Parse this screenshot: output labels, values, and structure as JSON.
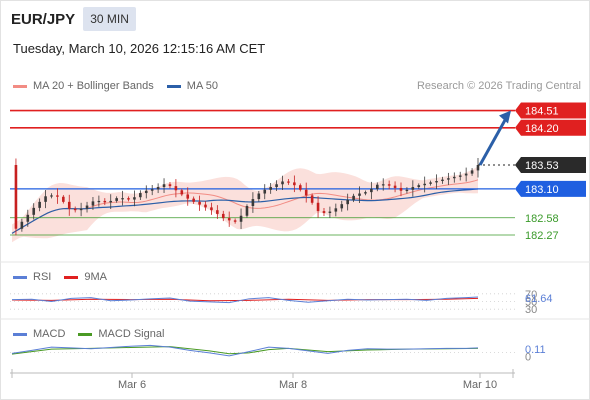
{
  "header": {
    "pair": "EUR/JPY",
    "timeframe": "30 MIN"
  },
  "datetime": "Tuesday, March 10, 2026 12:15:16 AM CET",
  "credit": "Research © 2026 Trading Central",
  "colors": {
    "bollinger": "#f28c84",
    "band_fill": "#fbe0dc",
    "ma50": "#2b5fa8",
    "resistance": "#e02020",
    "support_blue": "#1f5fe0",
    "support_green": "#3a9a2a",
    "candle_up": "#3a3a3a",
    "candle_down": "#c72020",
    "arrow": "#2b5fa8",
    "rsi": "#5b7fd6",
    "rsi_ma": "#e02020",
    "macd": "#5b7fd6",
    "macd_signal": "#4a9a24"
  },
  "chart_data": [
    {
      "type": "line",
      "title": "EUR/JPY",
      "y_range": [
        182.0,
        184.7
      ],
      "ma20_bollinger_label": "MA 20 + Bollinger Bands",
      "ma50_label": "MA 50",
      "x_tick_labels": [
        "Mar 6",
        "Mar 8",
        "Mar 10"
      ],
      "levels": [
        {
          "value": 184.51,
          "label": "184.51",
          "kind": "resistance",
          "style": "tag"
        },
        {
          "value": 184.2,
          "label": "184.20",
          "kind": "resistance",
          "style": "tag"
        },
        {
          "value": 183.53,
          "label": "183.53",
          "kind": "current",
          "style": "dark-tag"
        },
        {
          "value": 183.1,
          "label": "183.10",
          "kind": "support",
          "style": "tag"
        },
        {
          "value": 182.58,
          "label": "182.58",
          "kind": "support",
          "style": "text"
        },
        {
          "value": 182.27,
          "label": "182.27",
          "kind": "support",
          "style": "text"
        }
      ],
      "close_points": [
        [
          0,
          182.3
        ],
        [
          3,
          182.55
        ],
        [
          6,
          182.8
        ],
        [
          9,
          183.0
        ],
        [
          12,
          182.95
        ],
        [
          15,
          182.7
        ],
        [
          18,
          182.75
        ],
        [
          21,
          182.9
        ],
        [
          24,
          182.85
        ],
        [
          27,
          182.95
        ],
        [
          30,
          182.9
        ],
        [
          33,
          183.05
        ],
        [
          36,
          183.1
        ],
        [
          39,
          183.2
        ],
        [
          42,
          183.05
        ],
        [
          45,
          182.9
        ],
        [
          48,
          182.8
        ],
        [
          51,
          182.7
        ],
        [
          54,
          182.55
        ],
        [
          57,
          182.5
        ],
        [
          60,
          182.85
        ],
        [
          63,
          183.05
        ],
        [
          66,
          183.15
        ],
        [
          69,
          183.25
        ],
        [
          72,
          183.15
        ],
        [
          75,
          182.95
        ],
        [
          78,
          182.65
        ],
        [
          81,
          182.7
        ],
        [
          84,
          182.85
        ],
        [
          87,
          183.0
        ],
        [
          90,
          183.05
        ],
        [
          93,
          183.2
        ],
        [
          96,
          183.15
        ],
        [
          99,
          183.05
        ],
        [
          102,
          183.15
        ],
        [
          105,
          183.2
        ],
        [
          108,
          183.25
        ],
        [
          111,
          183.3
        ],
        [
          114,
          183.35
        ],
        [
          116,
          183.4
        ],
        [
          118,
          183.53
        ]
      ]
    },
    {
      "type": "line",
      "series_labels": [
        "RSI",
        "9MA"
      ],
      "value_label": "61.64",
      "tick_labels": [
        "70",
        "50",
        "30"
      ],
      "y_range": [
        20,
        80
      ],
      "rsi": [
        [
          0,
          55
        ],
        [
          5,
          56
        ],
        [
          10,
          50
        ],
        [
          15,
          58
        ],
        [
          20,
          60
        ],
        [
          25,
          52
        ],
        [
          30,
          54
        ],
        [
          35,
          57
        ],
        [
          40,
          59
        ],
        [
          45,
          51
        ],
        [
          50,
          49
        ],
        [
          55,
          47
        ],
        [
          60,
          57
        ],
        [
          65,
          60
        ],
        [
          70,
          53
        ],
        [
          75,
          48
        ],
        [
          80,
          52
        ],
        [
          85,
          56
        ],
        [
          90,
          54
        ],
        [
          95,
          55
        ],
        [
          100,
          56
        ],
        [
          105,
          53
        ],
        [
          110,
          58
        ],
        [
          115,
          60
        ],
        [
          118,
          61.64
        ]
      ],
      "rsi_ma": [
        [
          0,
          54
        ],
        [
          10,
          53
        ],
        [
          20,
          56
        ],
        [
          30,
          55
        ],
        [
          40,
          56
        ],
        [
          50,
          52
        ],
        [
          60,
          53
        ],
        [
          70,
          56
        ],
        [
          80,
          53
        ],
        [
          90,
          55
        ],
        [
          100,
          55
        ],
        [
          110,
          56
        ],
        [
          118,
          58
        ]
      ]
    },
    {
      "type": "line",
      "series_labels": [
        "MACD",
        "MACD Signal"
      ],
      "value_label": "0.11",
      "tick_labels": [
        "0"
      ],
      "y_range": [
        -0.3,
        0.3
      ],
      "macd": [
        [
          0,
          -0.02
        ],
        [
          5,
          0.05
        ],
        [
          10,
          0.13
        ],
        [
          15,
          0.11
        ],
        [
          20,
          0.09
        ],
        [
          25,
          0.12
        ],
        [
          30,
          0.15
        ],
        [
          35,
          0.17
        ],
        [
          40,
          0.13
        ],
        [
          45,
          0.05
        ],
        [
          50,
          -0.01
        ],
        [
          55,
          -0.08
        ],
        [
          60,
          0.02
        ],
        [
          65,
          0.13
        ],
        [
          70,
          0.1
        ],
        [
          75,
          0.04
        ],
        [
          80,
          -0.02
        ],
        [
          85,
          0.05
        ],
        [
          90,
          0.09
        ],
        [
          95,
          0.08
        ],
        [
          100,
          0.08
        ],
        [
          105,
          0.09
        ],
        [
          110,
          0.1
        ],
        [
          115,
          0.1
        ],
        [
          118,
          0.11
        ]
      ],
      "macd_signal": [
        [
          0,
          -0.04
        ],
        [
          10,
          0.08
        ],
        [
          20,
          0.1
        ],
        [
          30,
          0.12
        ],
        [
          40,
          0.14
        ],
        [
          50,
          0.04
        ],
        [
          55,
          -0.03
        ],
        [
          60,
          -0.01
        ],
        [
          65,
          0.07
        ],
        [
          70,
          0.1
        ],
        [
          80,
          0.02
        ],
        [
          90,
          0.06
        ],
        [
          100,
          0.08
        ],
        [
          110,
          0.09
        ],
        [
          118,
          0.1
        ]
      ]
    }
  ]
}
